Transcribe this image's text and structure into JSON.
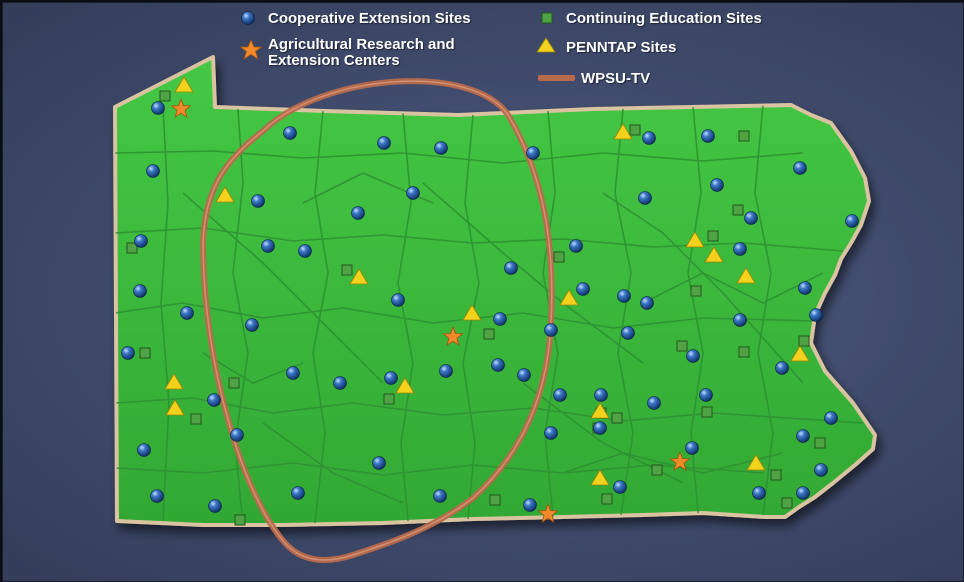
{
  "legend": {
    "cooperative_extension": "Cooperative Extension Sites",
    "continuing_education": "Continuing Education Sites",
    "ag_research_line1": "Agricultural Research and",
    "ag_research_line2": "Extension Centers",
    "penntap": "PENNTAP Sites",
    "wpsu": "WPSU-TV"
  },
  "colors": {
    "background": "#3f4a6b",
    "land": "#3dba3d",
    "county_lines": "#2e8f33",
    "border": "#d9c3a0",
    "wpsu_coverage": "#b86a4c",
    "cooperative_extension": "#2a5fa8",
    "continuing_education": "#4fa344",
    "ag_research": "#f08a2a",
    "penntap": "#f2d21c"
  },
  "icons": {
    "cooperative_extension": "blue-sphere",
    "continuing_education": "green-square",
    "ag_research": "orange-star",
    "penntap": "yellow-triangle",
    "wpsu": "brown-line"
  }
}
